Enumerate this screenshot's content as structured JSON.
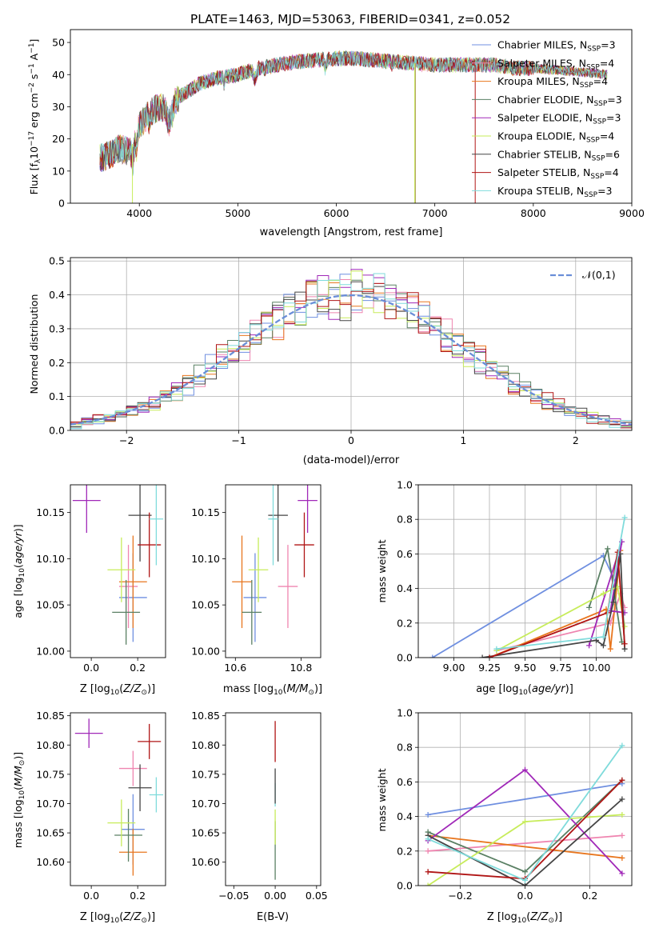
{
  "title": "PLATE=1463, MJD=53063, FIBERID=0341, z=0.052",
  "colors": {
    "Chabrier MILES": "#6f8fe0",
    "Salpeter MILES": "#ef85b0",
    "Kroupa MILES": "#e8761e",
    "Chabrier ELODIE": "#5a8064",
    "Salpeter ELODIE": "#a028b8",
    "Kroupa ELODIE": "#c7ec5a",
    "Chabrier STELIB": "#454545",
    "Salpeter STELIB": "#b01515",
    "Kroupa STELIB": "#7fdbdb",
    "normal": "#6a8ed8"
  },
  "chart_data": [
    {
      "id": "spectrum",
      "type": "line",
      "title": "PLATE=1463, MJD=53063, FIBERID=0341, z=0.052",
      "xlabel": "wavelength [Angstrom, rest frame]",
      "ylabel": "Flux [f_λ 10^-17 erg cm^-2 s^-1 A^-1]",
      "xlim": [
        3300,
        9000
      ],
      "ylim": [
        0,
        54
      ],
      "xticks": [
        4000,
        5000,
        6000,
        7000,
        8000,
        9000
      ],
      "yticks": [
        0,
        10,
        20,
        30,
        40,
        50
      ],
      "legend_position": "top-right",
      "legend": [
        "Chabrier MILES, N_SSP=3",
        "Salpeter MILES, N_SSP=4",
        "Kroupa MILES, N_SSP=4",
        "Chabrier ELODIE, N_SSP=3",
        "Salpeter ELODIE, N_SSP=3",
        "Kroupa ELODIE, N_SSP=4",
        "Chabrier STELIB, N_SSP=6",
        "Salpeter STELIB, N_SSP=4",
        "Kroupa STELIB, N_SSP=3"
      ],
      "continuum": {
        "x": [
          3600,
          3700,
          3800,
          3900,
          4000,
          4100,
          4200,
          4300,
          4400,
          4500,
          4600,
          4700,
          4800,
          5000,
          5200,
          5400,
          5600,
          5800,
          6000,
          6200,
          6400,
          6600,
          6800,
          7000,
          7200,
          7400,
          7600,
          7800,
          8000,
          8200,
          8400,
          8600,
          8750
        ],
        "y": [
          14,
          15,
          17,
          16,
          24,
          28,
          30,
          29,
          33,
          35,
          37,
          38,
          39,
          40,
          42,
          43,
          44,
          44.5,
          45,
          45,
          44.5,
          44,
          43.5,
          43,
          43,
          43,
          43,
          42,
          42,
          41.5,
          41,
          40.5,
          40
        ]
      },
      "drops": [
        {
          "x": 3930,
          "y_min": 0
        },
        {
          "x": 6795,
          "y_min": 0
        },
        {
          "x": 7410,
          "y_min": 0
        }
      ]
    },
    {
      "id": "residuals",
      "type": "histogram",
      "xlabel": "(data-model)/error",
      "ylabel": "Normed distribution",
      "xlim": [
        -2.5,
        2.5
      ],
      "ylim": [
        0,
        0.51
      ],
      "xticks": [
        -2,
        -1,
        0,
        1,
        2
      ],
      "yticks": [
        0,
        0.1,
        0.2,
        0.3,
        0.4,
        0.5
      ],
      "grid": true,
      "bins": 50,
      "legend_position": "top-right",
      "legend": [
        "𝒩(0,1)"
      ],
      "curve": "normal(0,1)"
    },
    {
      "id": "age_vs_Z",
      "type": "scatter-errorbar",
      "xlabel": "Z [log10(Z/Z_sun)]",
      "ylabel": "age [log10(age/yr)]",
      "xlim": [
        -0.09,
        0.32
      ],
      "ylim": [
        9.993,
        10.18
      ],
      "xticks": [
        0.0,
        0.2
      ],
      "yticks": [
        10.0,
        10.05,
        10.1,
        10.15
      ],
      "points": [
        {
          "model": "Chabrier MILES",
          "x": 0.18,
          "y": 10.058,
          "xerr": 0.06,
          "yerr": 0.048
        },
        {
          "model": "Salpeter MILES",
          "x": 0.16,
          "y": 10.07,
          "xerr": 0.04,
          "yerr": 0.045
        },
        {
          "model": "Kroupa MILES",
          "x": 0.18,
          "y": 10.075,
          "xerr": 0.06,
          "yerr": 0.05
        },
        {
          "model": "Chabrier ELODIE",
          "x": 0.15,
          "y": 10.042,
          "xerr": 0.06,
          "yerr": 0.035
        },
        {
          "model": "Salpeter ELODIE",
          "x": -0.02,
          "y": 10.163,
          "xerr": 0.06,
          "yerr": 0.035
        },
        {
          "model": "Kroupa ELODIE",
          "x": 0.13,
          "y": 10.088,
          "xerr": 0.06,
          "yerr": 0.035
        },
        {
          "model": "Chabrier STELIB",
          "x": 0.21,
          "y": 10.147,
          "xerr": 0.05,
          "yerr": 0.05
        },
        {
          "model": "Salpeter STELIB",
          "x": 0.25,
          "y": 10.115,
          "xerr": 0.05,
          "yerr": 0.035
        },
        {
          "model": "Kroupa STELIB",
          "x": 0.28,
          "y": 10.143,
          "xerr": 0.03,
          "yerr": 0.05
        }
      ]
    },
    {
      "id": "age_vs_mass",
      "type": "scatter-errorbar",
      "xlabel": "mass [log10(M/M_sun)]",
      "xlim": [
        10.57,
        10.86
      ],
      "ylim": [
        9.993,
        10.18
      ],
      "xticks": [
        10.6,
        10.8
      ],
      "yticks": [
        10.0,
        10.05,
        10.1,
        10.15
      ],
      "points": [
        {
          "model": "Chabrier MILES",
          "x": 10.66,
          "y": 10.058,
          "xerr": 0.035,
          "yerr": 0.048
        },
        {
          "model": "Salpeter MILES",
          "x": 10.76,
          "y": 10.07,
          "xerr": 0.03,
          "yerr": 0.045
        },
        {
          "model": "Kroupa MILES",
          "x": 10.62,
          "y": 10.075,
          "xerr": 0.03,
          "yerr": 0.05
        },
        {
          "model": "Chabrier ELODIE",
          "x": 10.65,
          "y": 10.042,
          "xerr": 0.03,
          "yerr": 0.035
        },
        {
          "model": "Salpeter ELODIE",
          "x": 10.82,
          "y": 10.163,
          "xerr": 0.03,
          "yerr": 0.035
        },
        {
          "model": "Kroupa ELODIE",
          "x": 10.67,
          "y": 10.088,
          "xerr": 0.03,
          "yerr": 0.035
        },
        {
          "model": "Chabrier STELIB",
          "x": 10.73,
          "y": 10.147,
          "xerr": 0.03,
          "yerr": 0.05
        },
        {
          "model": "Salpeter STELIB",
          "x": 10.81,
          "y": 10.115,
          "xerr": 0.03,
          "yerr": 0.035
        },
        {
          "model": "Kroupa STELIB",
          "x": 10.715,
          "y": 10.143,
          "xerr": 0.015,
          "yerr": 0.05
        }
      ]
    },
    {
      "id": "weight_vs_age",
      "type": "line",
      "xlabel": "age [log10(age/yr)]",
      "ylabel": "mass weight",
      "xlim": [
        8.75,
        10.25
      ],
      "ylim": [
        0,
        1
      ],
      "xticks": [
        9.0,
        9.25,
        9.5,
        9.75,
        10.0
      ],
      "yticks": [
        0,
        0.2,
        0.4,
        0.6,
        0.8,
        1.0
      ],
      "grid": true,
      "series": [
        {
          "model": "Chabrier MILES",
          "x": [
            8.85,
            10.05,
            10.15
          ],
          "y": [
            0.0,
            0.59,
            0.41
          ]
        },
        {
          "model": "Salpeter MILES",
          "x": [
            9.3,
            10.1,
            10.17,
            10.2
          ],
          "y": [
            0.04,
            0.2,
            0.37,
            0.29
          ]
        },
        {
          "model": "Kroupa MILES",
          "x": [
            9.25,
            10.07,
            10.1,
            10.17
          ],
          "y": [
            0.0,
            0.28,
            0.05,
            0.62
          ]
        },
        {
          "model": "Chabrier ELODIE",
          "x": [
            9.95,
            10.08,
            10.18
          ],
          "y": [
            0.29,
            0.63,
            0.09
          ]
        },
        {
          "model": "Salpeter ELODIE",
          "x": [
            9.95,
            10.18,
            10.1,
            10.2
          ],
          "y": [
            0.07,
            0.67,
            0.27,
            0.26
          ]
        },
        {
          "model": "Kroupa ELODIE",
          "x": [
            9.3,
            10.05,
            10.15,
            10.2
          ],
          "y": [
            0.04,
            0.37,
            0.41,
            0.18
          ]
        },
        {
          "model": "Chabrier STELIB",
          "x": [
            9.2,
            10.0,
            10.05,
            10.12,
            10.17,
            10.2
          ],
          "y": [
            0.0,
            0.1,
            0.07,
            0.32,
            0.6,
            0.05
          ]
        },
        {
          "model": "Salpeter STELIB",
          "x": [
            9.25,
            10.08,
            10.15,
            10.2
          ],
          "y": [
            0.0,
            0.26,
            0.61,
            0.08
          ]
        },
        {
          "model": "Kroupa STELIB",
          "x": [
            9.3,
            10.05,
            10.2
          ],
          "y": [
            0.05,
            0.12,
            0.81
          ]
        }
      ]
    },
    {
      "id": "mass_vs_Z",
      "type": "scatter-errorbar",
      "xlabel": "Z [log10(Z/Z_sun)]",
      "ylabel": "mass [log10(M/M_sun)]",
      "xlim": [
        -0.09,
        0.32
      ],
      "ylim": [
        10.56,
        10.855
      ],
      "xticks": [
        0.0,
        0.2
      ],
      "yticks": [
        10.6,
        10.65,
        10.7,
        10.75,
        10.8,
        10.85
      ],
      "points": [
        {
          "model": "Chabrier MILES",
          "x": 0.18,
          "y": 10.656,
          "xerr": 0.05,
          "yerr": 0.06
        },
        {
          "model": "Salpeter MILES",
          "x": 0.18,
          "y": 10.76,
          "xerr": 0.06,
          "yerr": 0.03
        },
        {
          "model": "Kroupa MILES",
          "x": 0.18,
          "y": 10.617,
          "xerr": 0.06,
          "yerr": 0.04
        },
        {
          "model": "Chabrier ELODIE",
          "x": 0.16,
          "y": 10.646,
          "xerr": 0.06,
          "yerr": 0.045
        },
        {
          "model": "Salpeter ELODIE",
          "x": -0.01,
          "y": 10.82,
          "xerr": 0.06,
          "yerr": 0.025
        },
        {
          "model": "Kroupa ELODIE",
          "x": 0.13,
          "y": 10.667,
          "xerr": 0.06,
          "yerr": 0.04
        },
        {
          "model": "Chabrier STELIB",
          "x": 0.21,
          "y": 10.727,
          "xerr": 0.05,
          "yerr": 0.04
        },
        {
          "model": "Salpeter STELIB",
          "x": 0.25,
          "y": 10.806,
          "xerr": 0.05,
          "yerr": 0.03
        },
        {
          "model": "Kroupa STELIB",
          "x": 0.28,
          "y": 10.715,
          "xerr": 0.03,
          "yerr": 0.03
        }
      ]
    },
    {
      "id": "mass_vs_EBV",
      "type": "scatter-errorbar",
      "xlabel": "E(B-V)",
      "xlim": [
        -0.06,
        0.055
      ],
      "ylim": [
        10.56,
        10.855
      ],
      "xticks": [
        -0.05,
        0.0,
        0.05
      ],
      "yticks": [
        10.6,
        10.65,
        10.7,
        10.75,
        10.8,
        10.85
      ],
      "points": [
        {
          "model": "Chabrier ELODIE",
          "x": 0.0,
          "y": 10.62,
          "xerr": 0,
          "yerr": 0.05
        },
        {
          "model": "Kroupa ELODIE",
          "x": 0.0,
          "y": 10.66,
          "xerr": 0,
          "yerr": 0.03
        },
        {
          "model": "Kroupa STELIB",
          "x": 0.0,
          "y": 10.715,
          "xerr": 0,
          "yerr": 0.02
        },
        {
          "model": "Chabrier STELIB",
          "x": 0.0,
          "y": 10.73,
          "xerr": 0,
          "yerr": 0.03
        },
        {
          "model": "Salpeter STELIB",
          "x": 0.0,
          "y": 10.806,
          "xerr": 0,
          "yerr": 0.035
        }
      ]
    },
    {
      "id": "weight_vs_Z",
      "type": "line",
      "xlabel": "Z [log10(Z/Z_sun)]",
      "ylabel": "mass weight",
      "xlim": [
        -0.33,
        0.33
      ],
      "ylim": [
        0,
        1
      ],
      "xticks": [
        -0.2,
        0.0,
        0.2
      ],
      "yticks": [
        0,
        0.2,
        0.4,
        0.6,
        0.8,
        1.0
      ],
      "grid": true,
      "series": [
        {
          "model": "Chabrier MILES",
          "x": [
            -0.3,
            0.3
          ],
          "y": [
            0.41,
            0.59
          ]
        },
        {
          "model": "Salpeter MILES",
          "x": [
            -0.3,
            0.3
          ],
          "y": [
            0.2,
            0.29
          ]
        },
        {
          "model": "Kroupa MILES",
          "x": [
            -0.3,
            0.3
          ],
          "y": [
            0.29,
            0.16
          ]
        },
        {
          "model": "Chabrier ELODIE",
          "x": [
            -0.3,
            0.0,
            0.3
          ],
          "y": [
            0.31,
            0.08,
            0.61
          ]
        },
        {
          "model": "Salpeter ELODIE",
          "x": [
            -0.3,
            0.0,
            0.3
          ],
          "y": [
            0.26,
            0.67,
            0.07
          ]
        },
        {
          "model": "Kroupa ELODIE",
          "x": [
            -0.3,
            0.0,
            0.3
          ],
          "y": [
            0.0,
            0.37,
            0.41
          ]
        },
        {
          "model": "Chabrier STELIB",
          "x": [
            -0.3,
            0.0,
            0.3
          ],
          "y": [
            0.29,
            0.0,
            0.5
          ]
        },
        {
          "model": "Salpeter STELIB",
          "x": [
            -0.3,
            0.0,
            0.3
          ],
          "y": [
            0.08,
            0.04,
            0.61
          ]
        },
        {
          "model": "Kroupa STELIB",
          "x": [
            -0.3,
            0.0,
            0.3
          ],
          "y": [
            0.27,
            0.03,
            0.81
          ]
        }
      ]
    }
  ]
}
